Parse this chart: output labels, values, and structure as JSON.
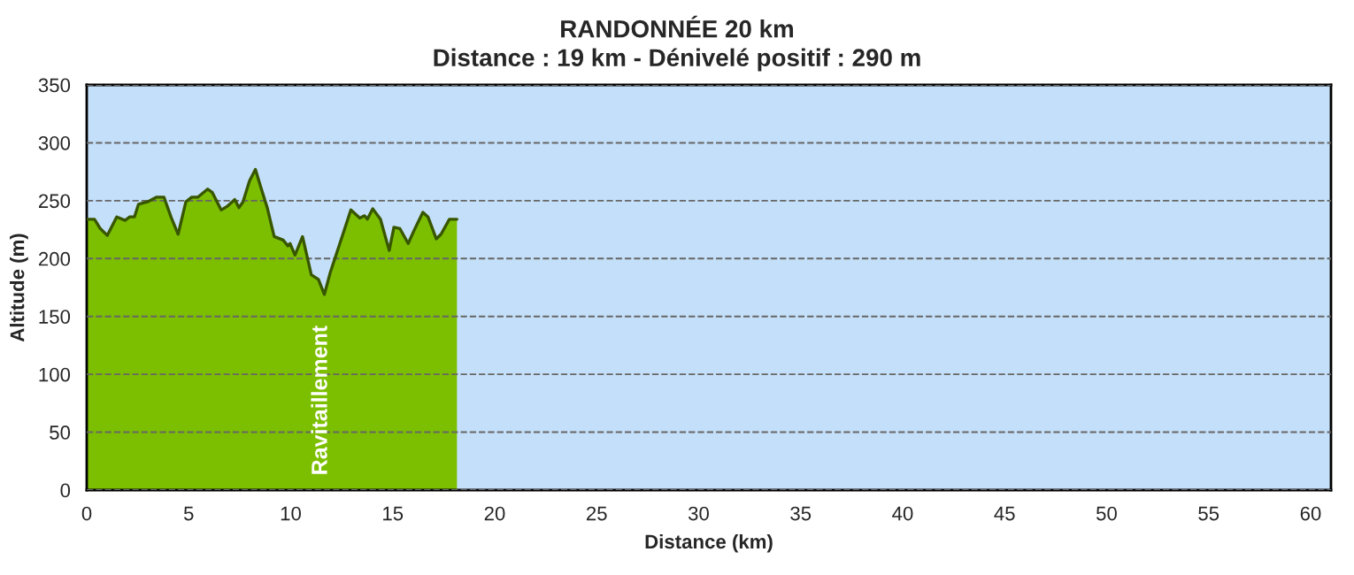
{
  "chart_data": {
    "type": "area",
    "title": "RANDONNÉE 20 km",
    "subtitle": "Distance : 19 km - Dénivelé positif : 290 m",
    "xlabel": "Distance (km)",
    "ylabel": "Altitude (m)",
    "series": [
      {
        "color": "#7cbf00",
        "x": [
          0,
          0.38,
          0.66,
          1.01,
          1.47,
          1.88,
          2.11,
          2.34,
          2.54,
          2.98,
          3.41,
          3.79,
          4.13,
          4.48,
          4.86,
          5.15,
          5.44,
          5.93,
          6.16,
          6.59,
          6.88,
          7.26,
          7.46,
          7.66,
          7.98,
          8.27,
          8.53,
          8.85,
          9.19,
          9.63,
          9.86,
          9.97,
          10.21,
          10.58,
          11.01,
          11.36,
          11.65,
          11.94,
          12.52,
          12.95,
          13.39,
          13.62,
          13.76,
          14.02,
          14.4,
          14.83,
          15.06,
          15.35,
          15.76,
          16.04,
          16.48,
          16.73,
          17.14,
          17.37,
          17.78,
          18.15
        ],
        "values": [
          234,
          234,
          226,
          220,
          236,
          233,
          236,
          236,
          247,
          249,
          253,
          253,
          236,
          221,
          249,
          253,
          253,
          260,
          257,
          242,
          245,
          251,
          244,
          249,
          267,
          277,
          262,
          244,
          219,
          216,
          211,
          213,
          203,
          219,
          186,
          182,
          169,
          188,
          219,
          242,
          235,
          237,
          234,
          243,
          234,
          207,
          227,
          226,
          213,
          224,
          240,
          236,
          217,
          221,
          234,
          234
        ]
      }
    ],
    "xlim": [
      0,
      61
    ],
    "xticks": [
      0,
      5,
      10,
      15,
      20,
      25,
      30,
      35,
      40,
      45,
      50,
      55,
      60
    ],
    "ylim": [
      0,
      350
    ],
    "yticks": [
      0,
      50,
      100,
      150,
      200,
      250,
      300,
      350
    ],
    "grid": "y",
    "legend": false,
    "line_style": "solid",
    "marker": "none",
    "annotations": [
      {
        "text": "Ravitaillement",
        "x": 11.5,
        "y": 0
      }
    ]
  }
}
